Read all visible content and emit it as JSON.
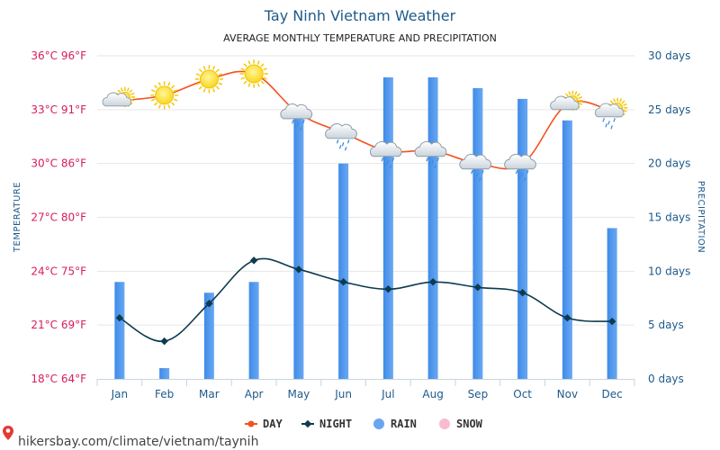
{
  "chart_data": {
    "type": "bar+line",
    "title": "Tay Ninh Vietnam Weather",
    "subtitle": "AVERAGE MONTHLY TEMPERATURE AND PRECIPITATION",
    "categories": [
      "Jan",
      "Feb",
      "Mar",
      "Apr",
      "May",
      "Jun",
      "Jul",
      "Aug",
      "Sep",
      "Oct",
      "Nov",
      "Dec"
    ],
    "series": [
      {
        "name": "DAY",
        "type": "line",
        "axis": "left",
        "unit": "°C",
        "color": "#f4511e",
        "values": [
          33.5,
          33.8,
          34.7,
          35.0,
          32.8,
          31.7,
          30.7,
          30.7,
          30.0,
          30.0,
          33.3,
          32.9
        ]
      },
      {
        "name": "NIGHT",
        "type": "line",
        "axis": "left",
        "unit": "°C",
        "color": "#0d3b4f",
        "values": [
          21.4,
          20.1,
          22.2,
          24.6,
          24.1,
          23.4,
          23.0,
          23.4,
          23.1,
          22.8,
          21.4,
          21.2
        ]
      },
      {
        "name": "RAIN",
        "type": "bar",
        "axis": "right",
        "unit": "days",
        "color": "#4d94f0",
        "values": [
          9,
          1,
          8,
          9,
          25,
          20,
          28,
          28,
          27,
          26,
          24,
          14
        ]
      },
      {
        "name": "SNOW",
        "type": "bar",
        "axis": "right",
        "unit": "days",
        "color": "#f8bbd0",
        "values": [
          0,
          0,
          0,
          0,
          0,
          0,
          0,
          0,
          0,
          0,
          0,
          0
        ]
      }
    ],
    "weather_icons": [
      "sun-cloud",
      "sun",
      "sun",
      "sun",
      "rain-cloud",
      "rain-cloud",
      "rain-cloud",
      "rain-cloud",
      "rain-cloud",
      "rain-cloud",
      "sun-cloud",
      "sun-rain-cloud"
    ],
    "left_axis": {
      "label": "TEMPERATURE",
      "ylim": [
        18,
        36
      ],
      "ticks": [
        18,
        21,
        24,
        27,
        30,
        33,
        36
      ],
      "tick_labels": [
        "18°C 64°F",
        "21°C 69°F",
        "24°C 75°F",
        "27°C 80°F",
        "30°C 86°F",
        "33°C 91°F",
        "36°C 96°F"
      ],
      "color": "#d81b60"
    },
    "right_axis": {
      "label": "PRECIPITATION",
      "ylim": [
        0,
        30
      ],
      "ticks": [
        0,
        5,
        10,
        15,
        20,
        25,
        30
      ],
      "tick_labels": [
        "0 days",
        "5 days",
        "10 days",
        "15 days",
        "20 days",
        "25 days",
        "30 days"
      ],
      "color": "#1e5a8a"
    },
    "legend": {
      "placement": "bottom-center",
      "items": [
        {
          "label": "DAY",
          "marker": "line-dot",
          "color": "#f4511e"
        },
        {
          "label": "NIGHT",
          "marker": "line-diamond",
          "color": "#0d3b4f"
        },
        {
          "label": "RAIN",
          "marker": "circle",
          "color": "#6aa6ee"
        },
        {
          "label": "SNOW",
          "marker": "circle",
          "color": "#f8bbd0"
        }
      ]
    },
    "grid": true
  },
  "footer": {
    "text": "hikersbay.com/climate/vietnam/taynih"
  }
}
